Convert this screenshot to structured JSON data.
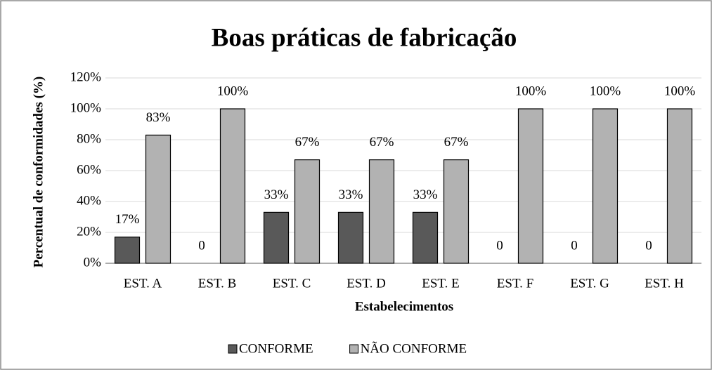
{
  "chart_data": {
    "type": "bar",
    "title": "Boas práticas de fabricação",
    "x_label": "Estabelecimentos",
    "y_label": "Percentual de conformidades (%)",
    "categories": [
      "EST. A",
      "EST. B",
      "EST. C",
      "EST. D",
      "EST. E",
      "EST. F",
      "EST. G",
      "EST. H"
    ],
    "series": [
      {
        "name": "CONFORME",
        "color": "#595959",
        "values": [
          17,
          0,
          33,
          33,
          33,
          0,
          0,
          0
        ],
        "value_labels": [
          "17%",
          "0",
          "33%",
          "33%",
          "33%",
          "0",
          "0",
          "0"
        ]
      },
      {
        "name": "NÃO CONFORME",
        "color": "#b2b2b2",
        "values": [
          83,
          100,
          67,
          67,
          67,
          100,
          100,
          100
        ],
        "value_labels": [
          "83%",
          "100%",
          "67%",
          "67%",
          "67%",
          "100%",
          "100%",
          "100%"
        ]
      }
    ],
    "ylim": [
      0,
      120
    ],
    "yticks": [
      {
        "value": 0,
        "label": "0%"
      },
      {
        "value": 20,
        "label": "20%"
      },
      {
        "value": 40,
        "label": "40%"
      },
      {
        "value": 60,
        "label": "60%"
      },
      {
        "value": 80,
        "label": "80%"
      },
      {
        "value": 100,
        "label": "100%"
      },
      {
        "value": 120,
        "label": "120%"
      }
    ],
    "grid": true,
    "legend": "bottom"
  }
}
